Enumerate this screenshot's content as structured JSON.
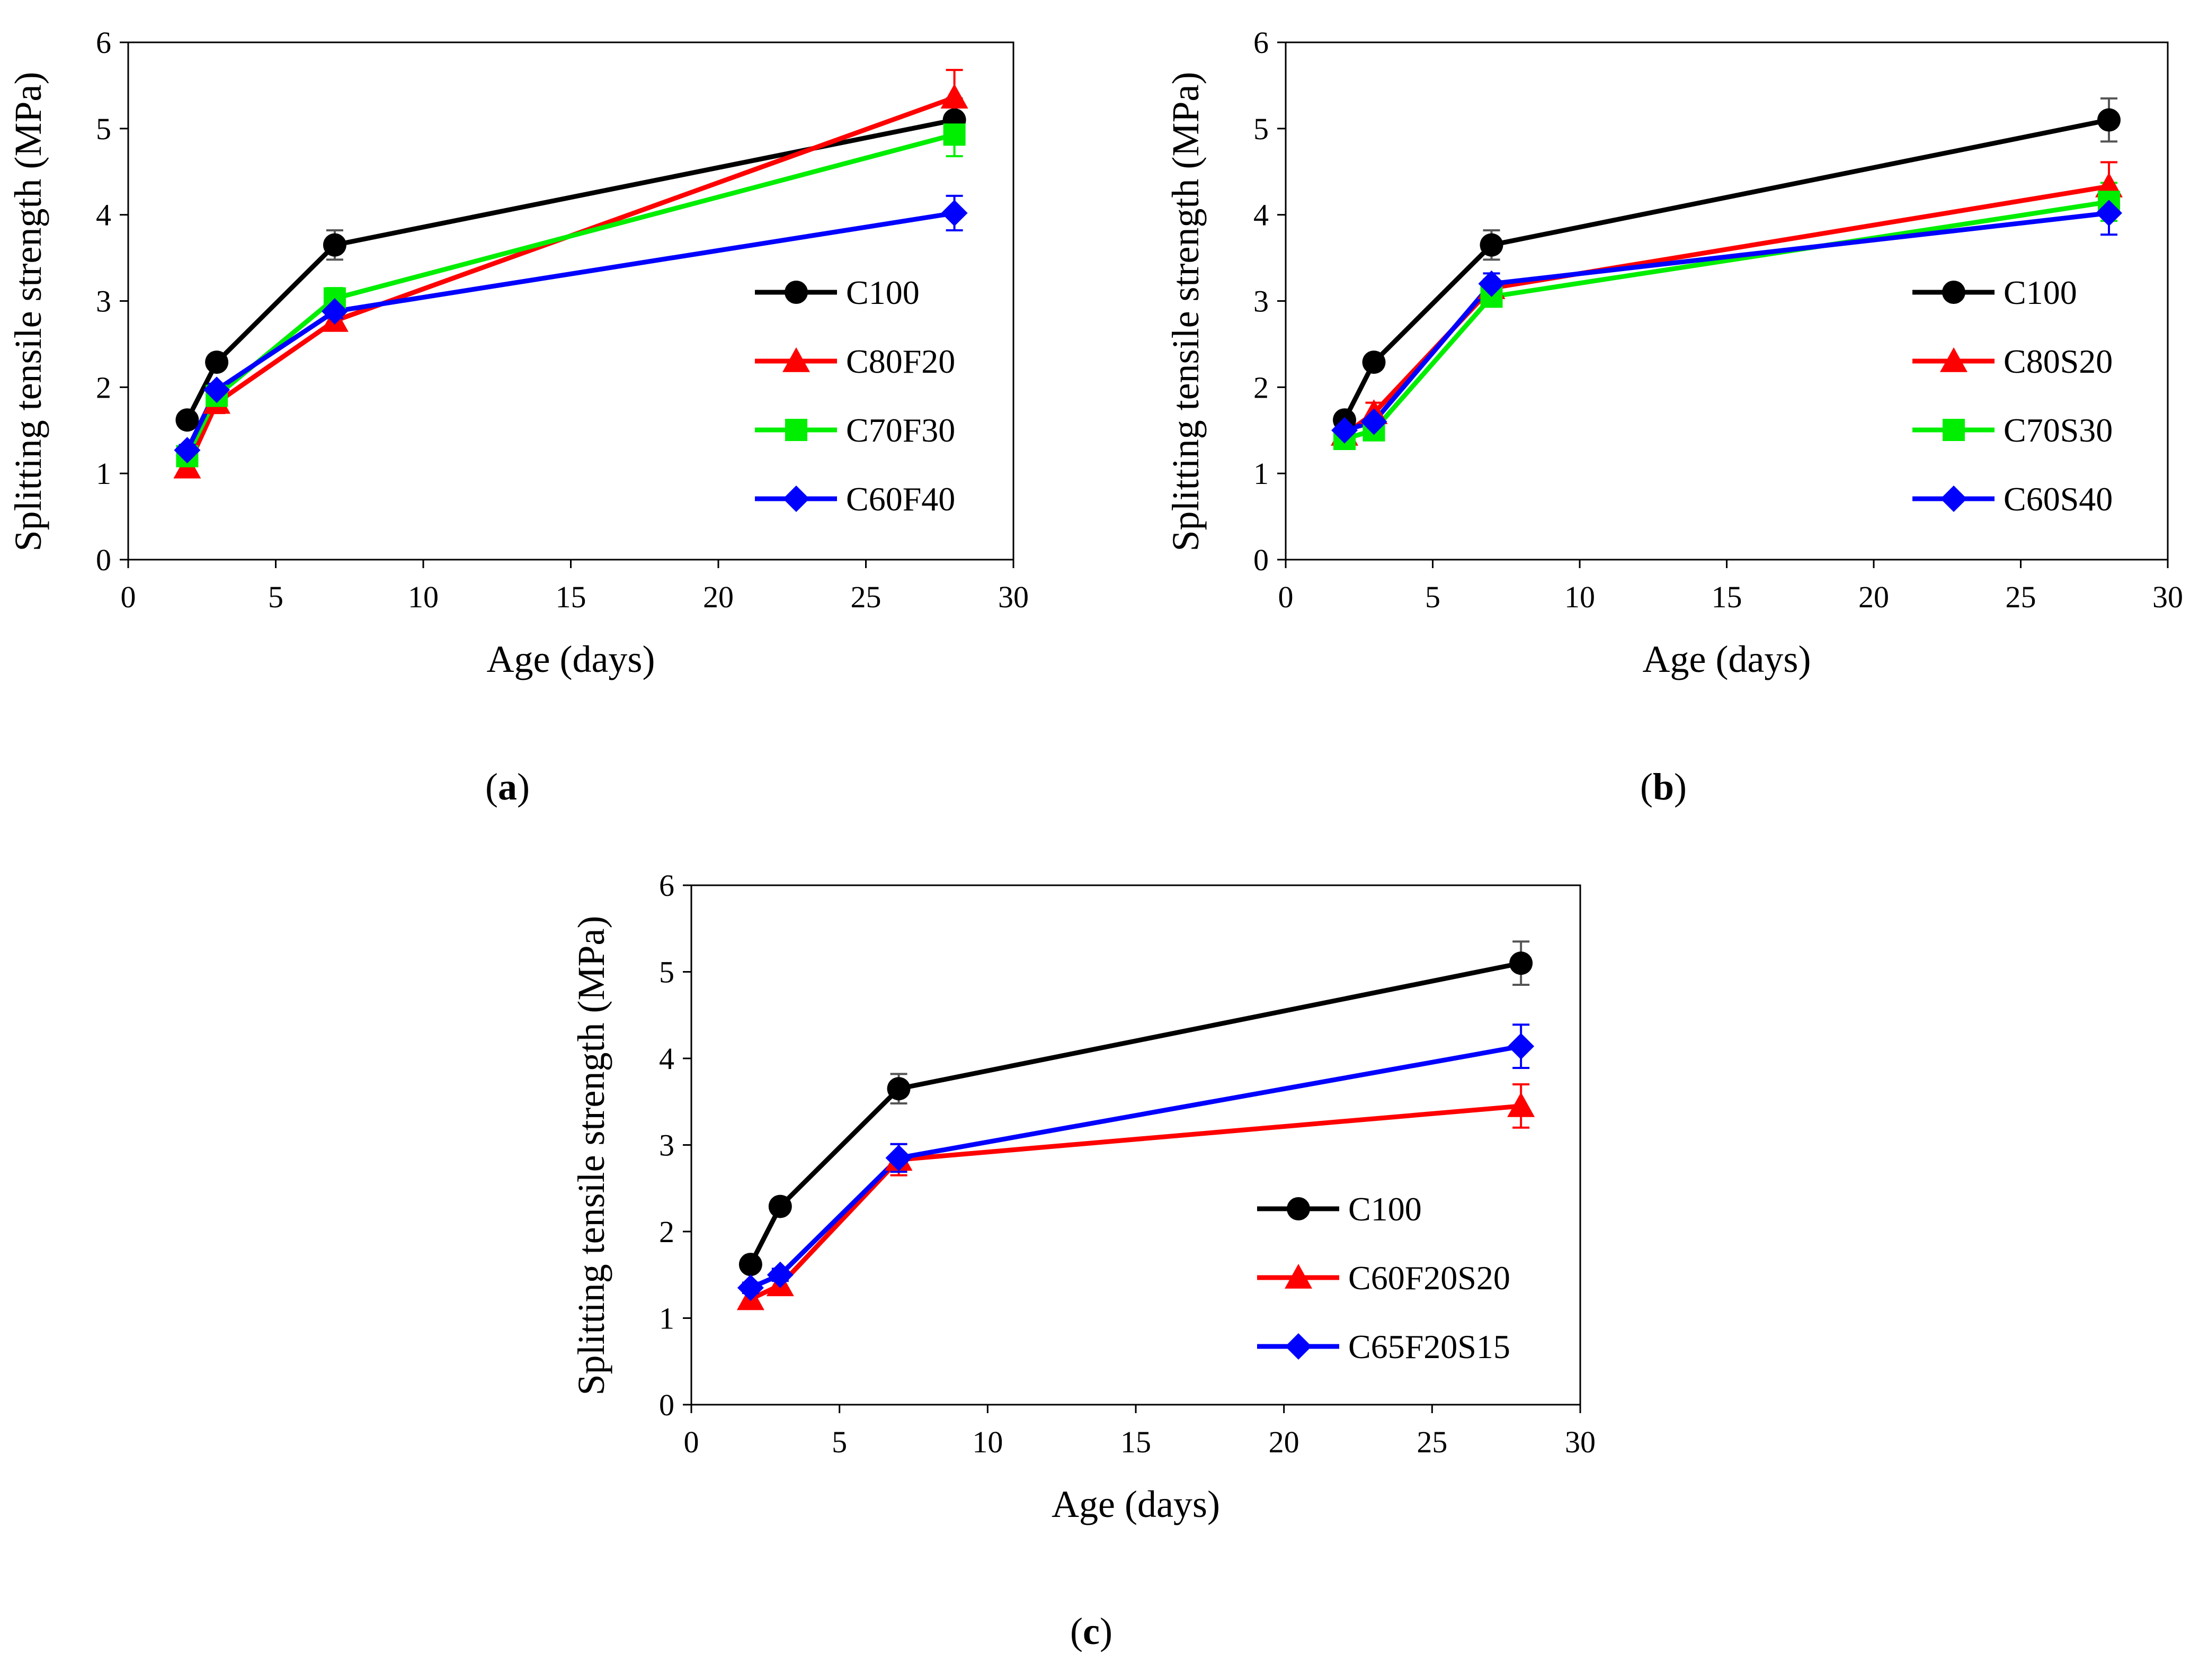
{
  "figure": {
    "panels": [
      "a",
      "b",
      "c"
    ]
  },
  "chart_data": [
    {
      "type": "line",
      "panel": "a",
      "caption_letter": "a",
      "title": "",
      "xlabel": "Age (days)",
      "ylabel": "Splitting tensile strength (MPa)",
      "xlim": [
        0,
        30
      ],
      "ylim": [
        0,
        6
      ],
      "xticks": [
        0,
        5,
        10,
        15,
        20,
        25,
        30
      ],
      "yticks": [
        0,
        1,
        2,
        3,
        4,
        5,
        6
      ],
      "grid": false,
      "legend_position": "right-center",
      "x": [
        2,
        3,
        7,
        28
      ],
      "series": [
        {
          "name": "C100",
          "color": "#000000",
          "marker": "circle",
          "values": [
            1.62,
            2.29,
            3.65,
            5.1
          ],
          "errors": [
            0.06,
            0.08,
            0.17,
            0.25
          ]
        },
        {
          "name": "C80F20",
          "color": "#ff0000",
          "marker": "triangle",
          "values": [
            1.07,
            1.82,
            2.77,
            5.36
          ],
          "errors": [
            0.1,
            0.12,
            0.1,
            0.32
          ]
        },
        {
          "name": "C70F30",
          "color": "#00ee00",
          "marker": "square",
          "values": [
            1.2,
            1.9,
            3.03,
            4.93
          ],
          "errors": [
            0.08,
            0.09,
            0.12,
            0.25
          ]
        },
        {
          "name": "C60F40",
          "color": "#0000ff",
          "marker": "diamond",
          "values": [
            1.27,
            1.97,
            2.88,
            4.02
          ],
          "errors": [
            0.06,
            0.07,
            0.08,
            0.2
          ]
        }
      ]
    },
    {
      "type": "line",
      "panel": "b",
      "caption_letter": "b",
      "title": "",
      "xlabel": "Age (days)",
      "ylabel": "Splitting tensile strength (MPa)",
      "xlim": [
        0,
        30
      ],
      "ylim": [
        0,
        6
      ],
      "xticks": [
        0,
        5,
        10,
        15,
        20,
        25,
        30
      ],
      "yticks": [
        0,
        1,
        2,
        3,
        4,
        5,
        6
      ],
      "grid": false,
      "legend_position": "right-center",
      "x": [
        2,
        3,
        7,
        28
      ],
      "series": [
        {
          "name": "C100",
          "color": "#000000",
          "marker": "circle",
          "values": [
            1.62,
            2.29,
            3.65,
            5.1
          ],
          "errors": [
            0.06,
            0.08,
            0.17,
            0.25
          ]
        },
        {
          "name": "C80S20",
          "color": "#ff0000",
          "marker": "triangle",
          "values": [
            1.45,
            1.7,
            3.15,
            4.33
          ],
          "errors": [
            0.1,
            0.12,
            0.1,
            0.28
          ]
        },
        {
          "name": "C70S30",
          "color": "#00ee00",
          "marker": "square",
          "values": [
            1.4,
            1.5,
            3.05,
            4.15
          ],
          "errors": [
            0.08,
            0.09,
            0.1,
            0.22
          ]
        },
        {
          "name": "C60S40",
          "color": "#0000ff",
          "marker": "diamond",
          "values": [
            1.5,
            1.6,
            3.2,
            4.02
          ],
          "errors": [
            0.06,
            0.07,
            0.12,
            0.25
          ]
        }
      ]
    },
    {
      "type": "line",
      "panel": "c",
      "caption_letter": "c",
      "title": "",
      "xlabel": "Age (days)",
      "ylabel": "Splitting tensile strength (MPa)",
      "xlim": [
        0,
        30
      ],
      "ylim": [
        0,
        6
      ],
      "xticks": [
        0,
        5,
        10,
        15,
        20,
        25,
        30
      ],
      "yticks": [
        0,
        1,
        2,
        3,
        4,
        5,
        6
      ],
      "grid": false,
      "legend_position": "right-center",
      "x": [
        2,
        3,
        7,
        28
      ],
      "series": [
        {
          "name": "C100",
          "color": "#000000",
          "marker": "circle",
          "values": [
            1.62,
            2.29,
            3.65,
            5.1
          ],
          "errors": [
            0.06,
            0.08,
            0.17,
            0.25
          ]
        },
        {
          "name": "C60F20S20",
          "color": "#ff0000",
          "marker": "triangle",
          "values": [
            1.22,
            1.38,
            2.83,
            3.45
          ],
          "errors": [
            0.08,
            0.08,
            0.18,
            0.25
          ]
        },
        {
          "name": "C65F20S15",
          "color": "#0000ff",
          "marker": "diamond",
          "values": [
            1.35,
            1.5,
            2.85,
            4.14
          ],
          "errors": [
            0.06,
            0.07,
            0.16,
            0.25
          ]
        }
      ]
    }
  ]
}
